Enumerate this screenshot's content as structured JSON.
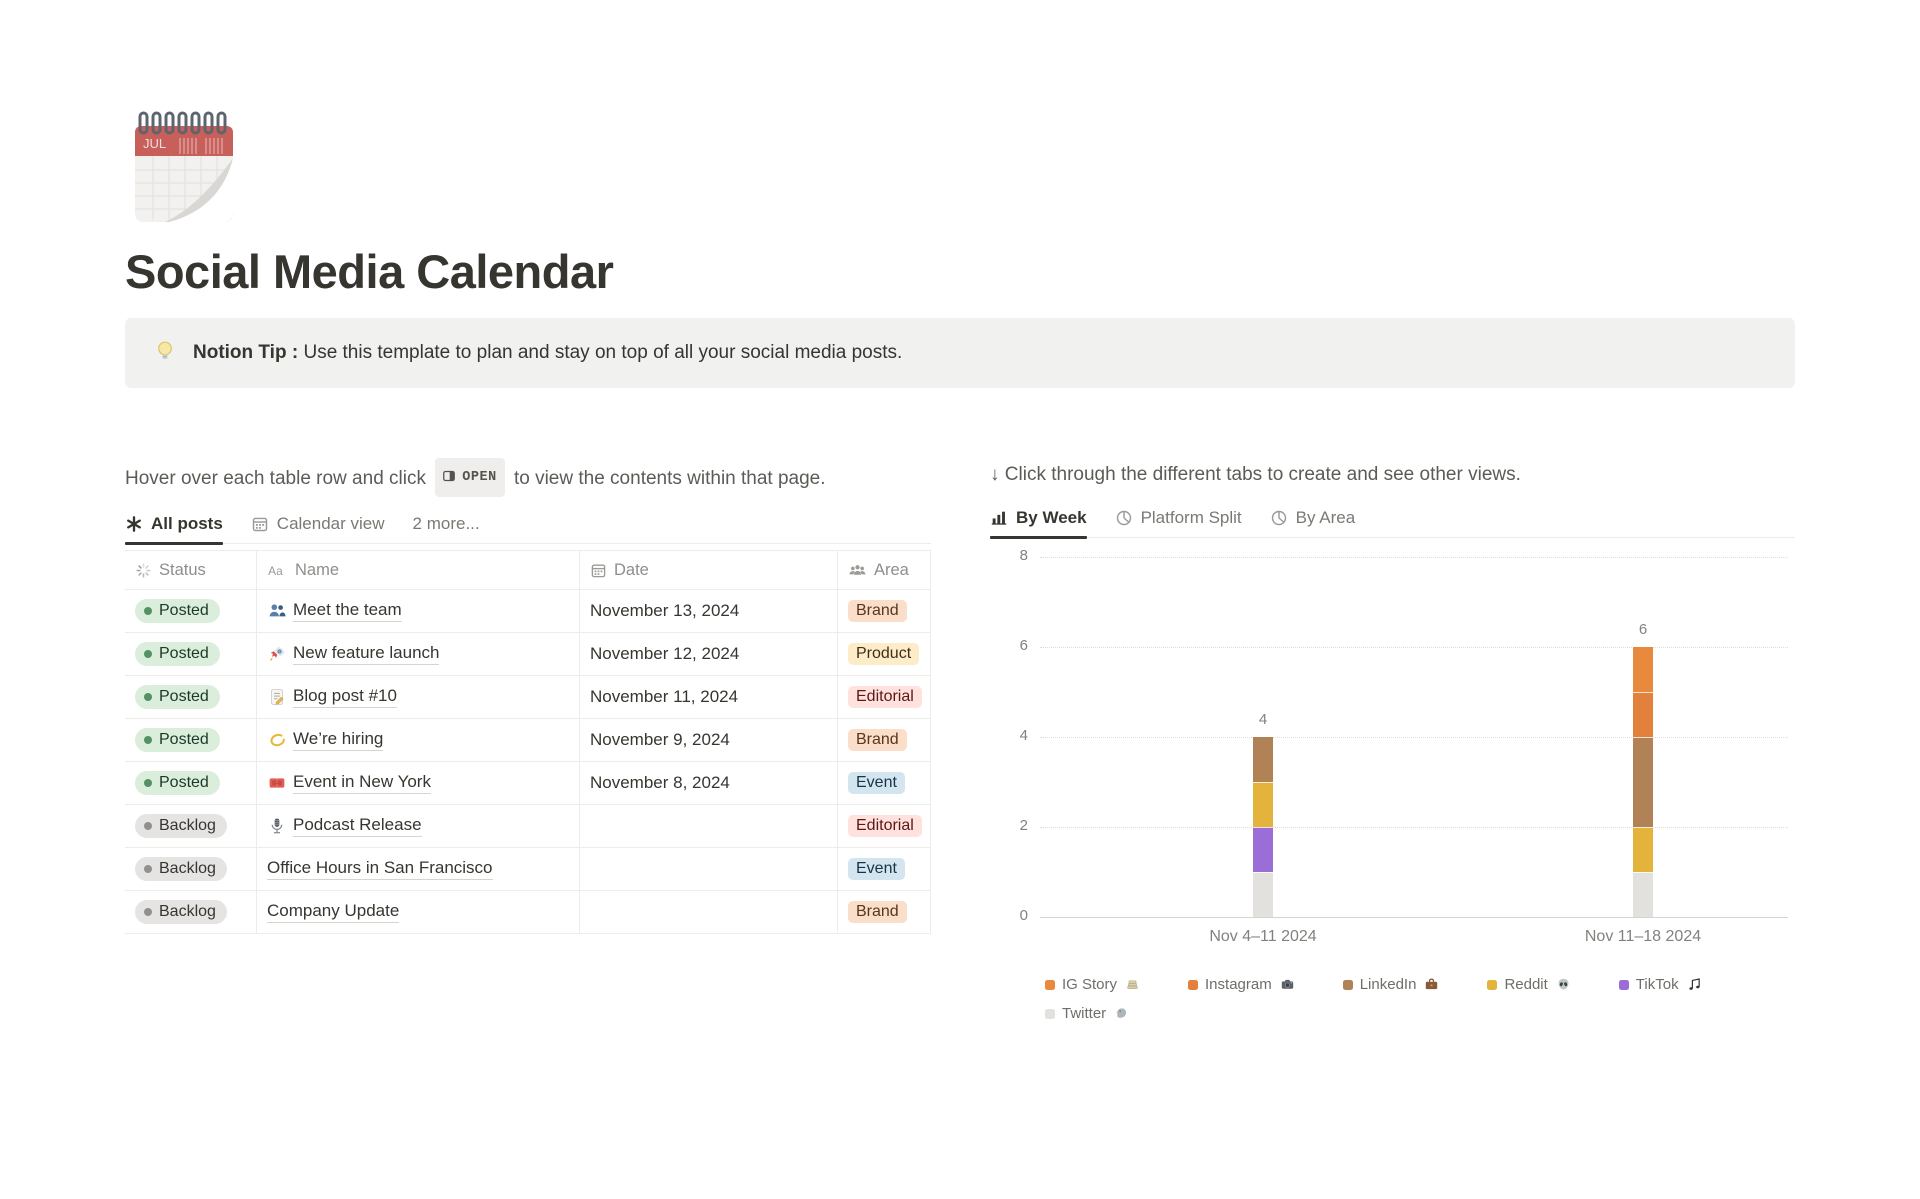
{
  "page": {
    "title": "Social Media Calendar",
    "icon": "spiral-calendar-icon",
    "icon_month": "JUL"
  },
  "callout": {
    "icon": "lightbulb-icon",
    "bold": "Notion Tip :",
    "text": " Use this template to plan and stay on top of all your social media posts."
  },
  "left": {
    "instruction": {
      "before": "Hover over each table row and click",
      "open_button": "OPEN",
      "after": "to view the contents within that page."
    },
    "tabs": [
      {
        "label": "All posts",
        "icon": "asterisk-view-icon",
        "active": true
      },
      {
        "label": "Calendar view",
        "icon": "calendar-view-icon",
        "active": false
      },
      {
        "label": "2 more...",
        "icon": null,
        "active": false
      }
    ],
    "table": {
      "columns": [
        {
          "label": "Status",
          "icon": "status-spinner-icon"
        },
        {
          "label": "Name",
          "icon": "aa-text-icon"
        },
        {
          "label": "Date",
          "icon": "calendar-icon"
        },
        {
          "label": "Area",
          "icon": "people-group-icon"
        }
      ],
      "rows": [
        {
          "status": "Posted",
          "status_color": "green",
          "icon": "busts-icon",
          "name": "Meet the team",
          "date": "November 13, 2024",
          "area": "Brand",
          "area_color": "orange"
        },
        {
          "status": "Posted",
          "status_color": "green",
          "icon": "rocket-icon",
          "name": "New feature launch",
          "date": "November 12, 2024",
          "area": "Product",
          "area_color": "yellow"
        },
        {
          "status": "Posted",
          "status_color": "green",
          "icon": "memo-icon",
          "name": "Blog post #10",
          "date": "November 11, 2024",
          "area": "Editorial",
          "area_color": "red"
        },
        {
          "status": "Posted",
          "status_color": "green",
          "icon": "crescent-icon",
          "name": "We’re hiring",
          "date": "November 9, 2024",
          "area": "Brand",
          "area_color": "orange"
        },
        {
          "status": "Posted",
          "status_color": "green",
          "icon": "ticket-icon",
          "name": "Event in New York",
          "date": "November 8, 2024",
          "area": "Event",
          "area_color": "blue"
        },
        {
          "status": "Backlog",
          "status_color": "gray",
          "icon": "microphone-icon",
          "name": "Podcast Release",
          "date": "",
          "area": "Editorial",
          "area_color": "red"
        },
        {
          "status": "Backlog",
          "status_color": "gray",
          "icon": null,
          "name": "Office Hours in San Francisco",
          "date": "",
          "area": "Event",
          "area_color": "blue"
        },
        {
          "status": "Backlog",
          "status_color": "gray",
          "icon": null,
          "name": "Company Update",
          "date": "",
          "area": "Brand",
          "area_color": "orange"
        }
      ]
    }
  },
  "right": {
    "instruction": "↓ Click through the different tabs to create and see other views.",
    "tabs": [
      {
        "label": "By Week",
        "icon": "bar-chart-icon",
        "active": true
      },
      {
        "label": "Platform Split",
        "icon": "pie-chart-icon",
        "active": false
      },
      {
        "label": "By Area",
        "icon": "pie-chart-icon",
        "active": false
      }
    ]
  },
  "chart_data": {
    "type": "bar",
    "stacked": true,
    "title": "",
    "xlabel": "",
    "ylabel": "",
    "categories": [
      "Nov 4–11 2024",
      "Nov 11–18 2024"
    ],
    "series": [
      {
        "name": "IG Story",
        "icon": "newspaper-stack-icon",
        "color": "#E78A3E",
        "values": [
          0,
          1
        ]
      },
      {
        "name": "Instagram",
        "icon": "camera-icon",
        "color": "#E2813B",
        "values": [
          0,
          1
        ]
      },
      {
        "name": "LinkedIn",
        "icon": "briefcase-icon",
        "color": "#B08255",
        "values": [
          1,
          2
        ]
      },
      {
        "name": "Reddit",
        "icon": "alien-icon",
        "color": "#E3B33C",
        "values": [
          1,
          1
        ]
      },
      {
        "name": "TikTok",
        "icon": "music-note-icon",
        "color": "#9B6DD7",
        "values": [
          1,
          0
        ]
      },
      {
        "name": "Twitter",
        "icon": "bird-icon",
        "color": "#E3E1DE",
        "values": [
          1,
          1
        ]
      }
    ],
    "totals": [
      4,
      6
    ],
    "yticks": [
      0,
      2,
      4,
      6,
      8
    ],
    "ylim": [
      0,
      8
    ],
    "grid": "dotted-horizontal",
    "legend_position": "bottom"
  },
  "palette": {
    "status_green_bg": "#DBEDDB",
    "status_green_dot": "#549164",
    "status_gray_bg": "#E5E4E2",
    "status_gray_dot": "#90908C",
    "tag_orange_bg": "#FADEC9",
    "tag_yellow_bg": "#FDECC8",
    "tag_red_bg": "#FFE2DD",
    "tag_blue_bg": "#D3E5EF",
    "active_tab_underline": "#37352F",
    "callout_bg": "#F1F1EF"
  }
}
